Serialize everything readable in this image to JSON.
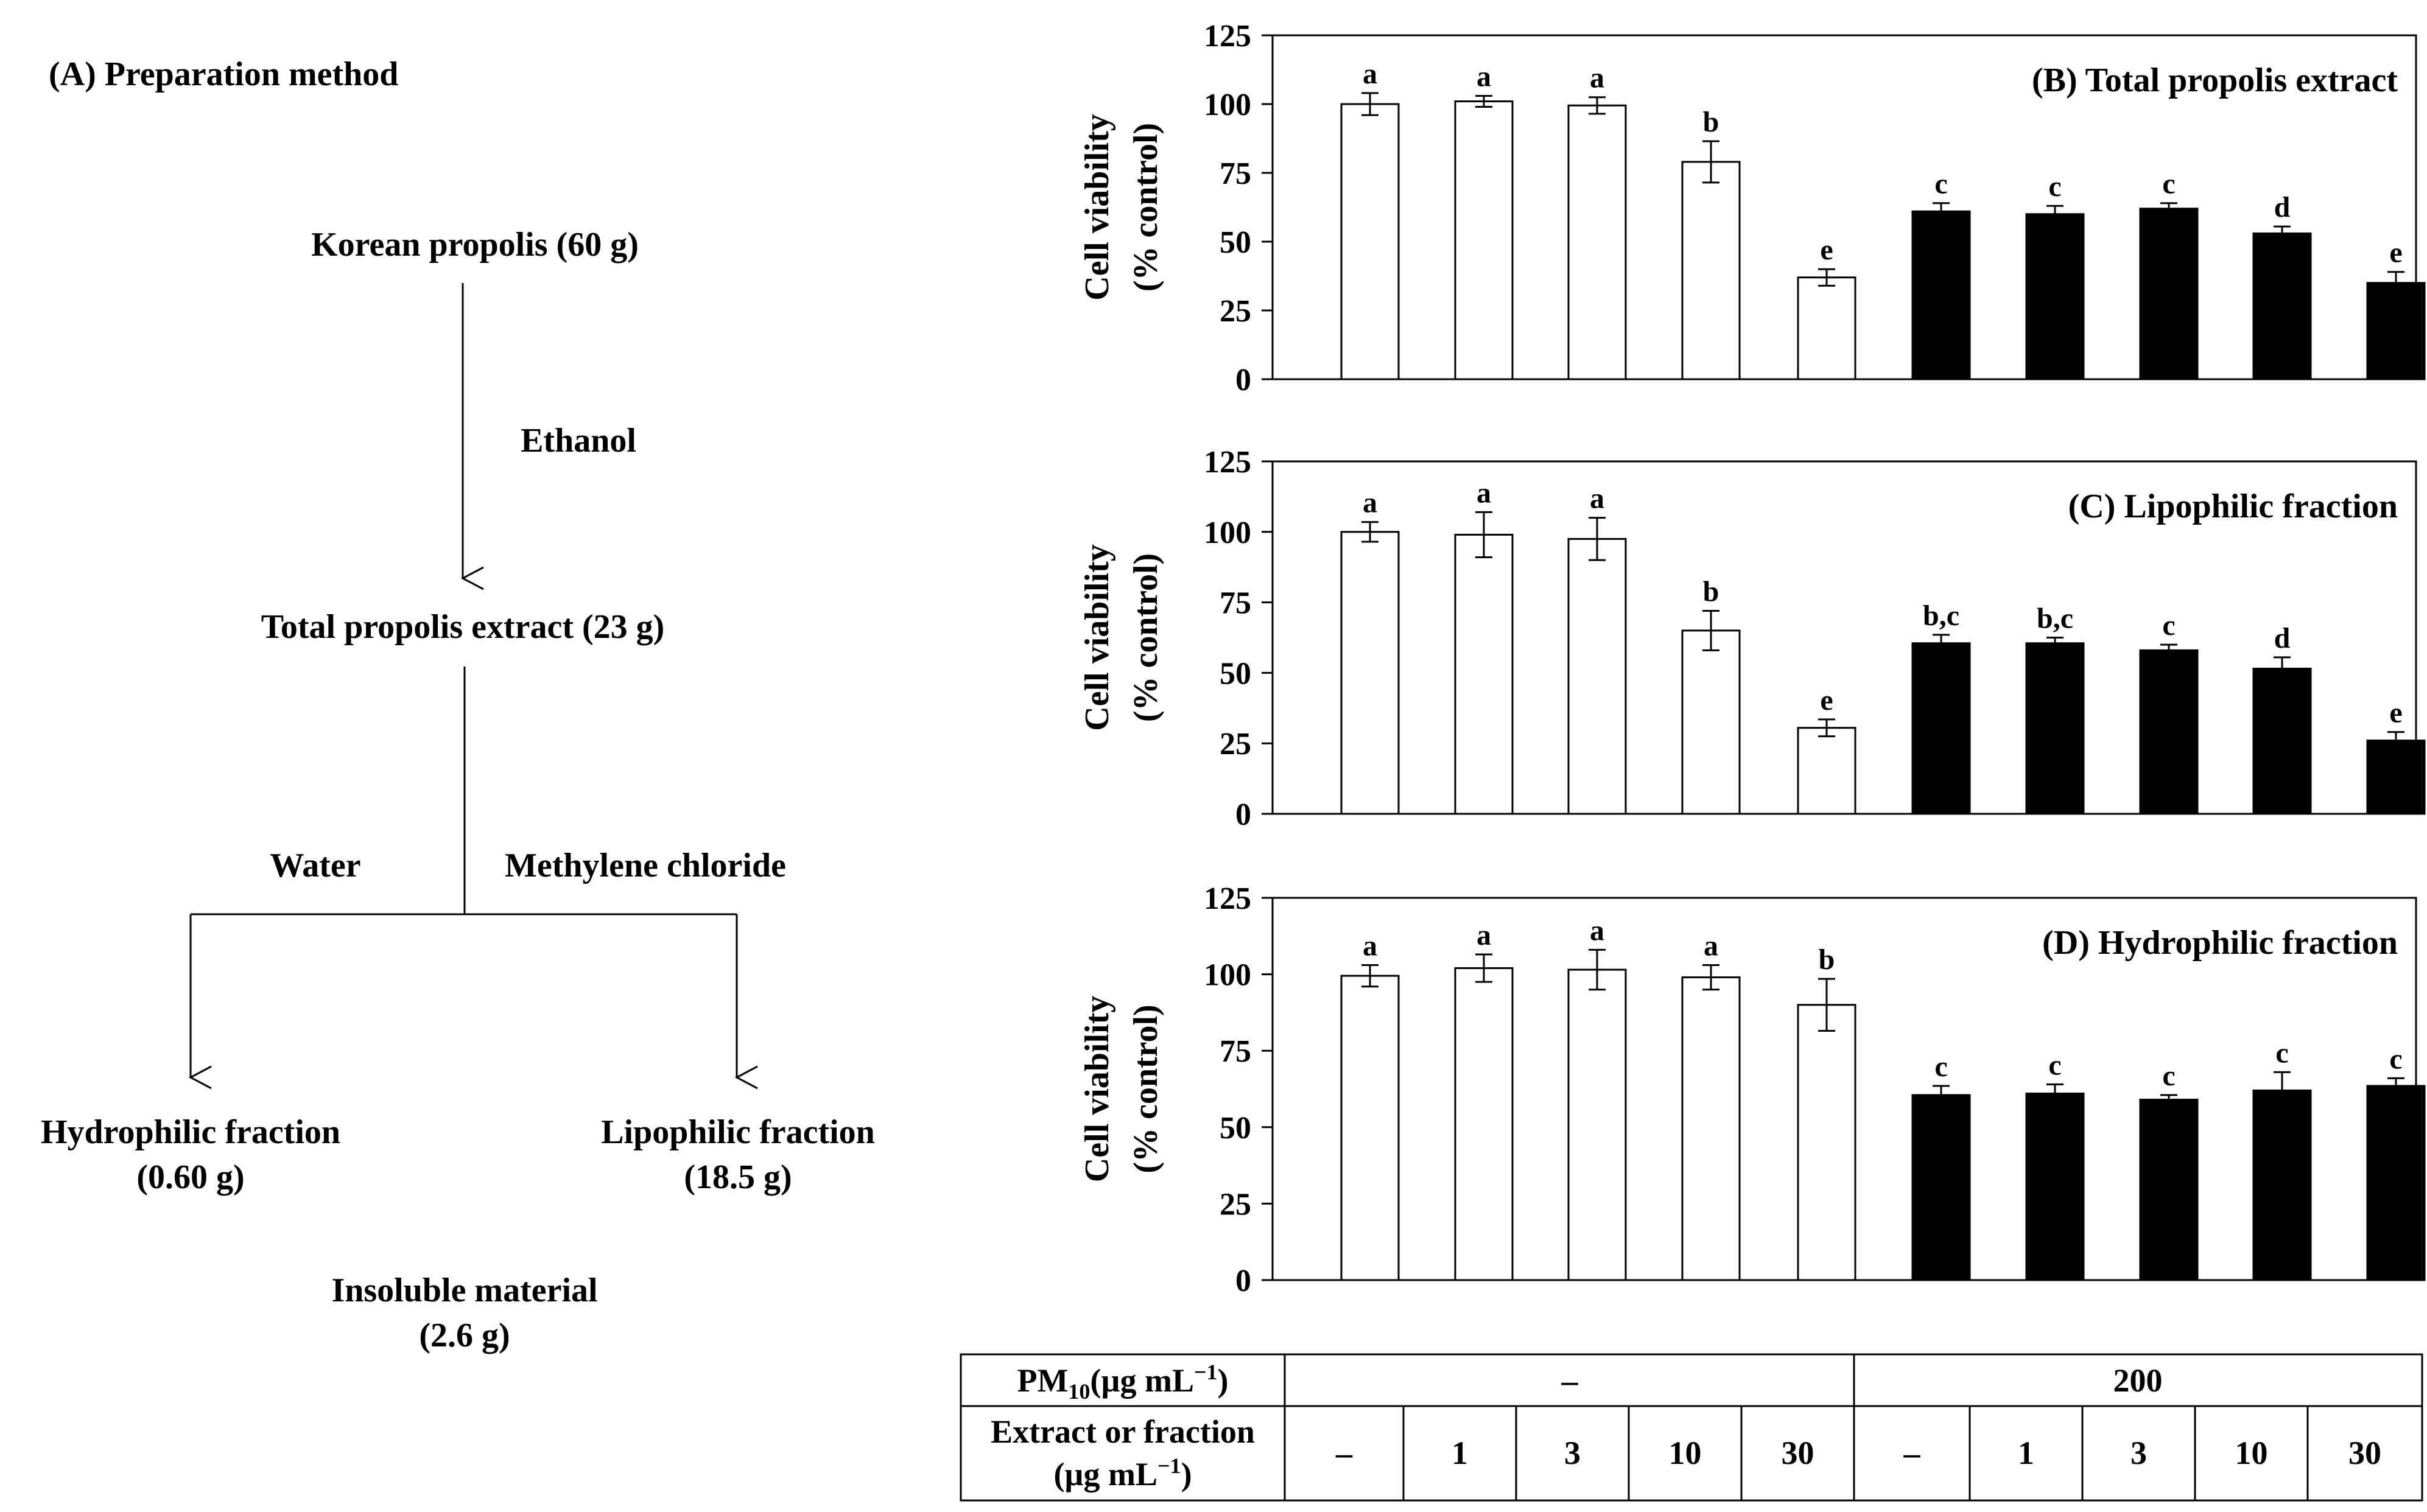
{
  "flowchart": {
    "title": "(A) Preparation method",
    "start": "Korean propolis (60 g)",
    "step1_solvent": "Ethanol",
    "total_extract": "Total propolis extract (23 g)",
    "solvent_left": "Water",
    "solvent_right": "Methylene chloride",
    "hydrophilic_name": "Hydrophilic fraction",
    "hydrophilic_mass": "(0.60 g)",
    "lipophilic_name": "Lipophilic fraction",
    "lipophilic_mass": "(18.5 g)",
    "insoluble_name": "Insoluble material",
    "insoluble_mass": "(2.6 g)"
  },
  "colors": {
    "control_fill": "#ffffff",
    "pm_fill": "#000000",
    "axis": "#000000"
  },
  "chart_data": [
    {
      "type": "bar",
      "title": "(B) Total propolis extract",
      "ylabel_line1": "Cell viability",
      "ylabel_line2": "(% control)",
      "ylim": [
        0,
        125
      ],
      "yticks": [
        "0",
        "25",
        "50",
        "75",
        "100",
        "125"
      ],
      "values": [
        100,
        101,
        99.5,
        79,
        37,
        61,
        60,
        62,
        53,
        35
      ],
      "errors": [
        4,
        2,
        3,
        7.5,
        3,
        3,
        3,
        2,
        2.5,
        4
      ],
      "letters": [
        "a",
        "a",
        "a",
        "b",
        "e",
        "c",
        "c",
        "c",
        "d",
        "e"
      ]
    },
    {
      "type": "bar",
      "title": "(C) Lipophilic fraction",
      "ylabel_line1": "Cell viability",
      "ylabel_line2": "(% control)",
      "ylim": [
        0,
        125
      ],
      "yticks": [
        "0",
        "25",
        "50",
        "75",
        "100",
        "125"
      ],
      "values": [
        100,
        99,
        97.5,
        65,
        30.5,
        60.5,
        60.5,
        58,
        51.5,
        26
      ],
      "errors": [
        3.5,
        8,
        7.5,
        7,
        3,
        3,
        2,
        2,
        4,
        3
      ],
      "letters": [
        "a",
        "a",
        "a",
        "b",
        "e",
        "b,c",
        "b,c",
        "c",
        "d",
        "e"
      ]
    },
    {
      "type": "bar",
      "title": "(D) Hydrophilic fraction",
      "ylabel_line1": "Cell viability",
      "ylabel_line2": "(% control)",
      "ylim": [
        0,
        125
      ],
      "yticks": [
        "0",
        "25",
        "50",
        "75",
        "100",
        "125"
      ],
      "values": [
        99.5,
        102,
        101.5,
        99,
        90,
        60.5,
        61,
        59,
        62,
        63.5
      ],
      "errors": [
        3.5,
        4.5,
        6.5,
        4,
        8.5,
        3,
        3,
        1.5,
        6,
        2.5
      ],
      "letters": [
        "a",
        "a",
        "a",
        "a",
        "b",
        "c",
        "c",
        "c",
        "c",
        "c"
      ]
    }
  ],
  "table": {
    "pm_label": "PM",
    "pm_sub": "10",
    "pm_unit": "(µg mL",
    "pm_exp": "−1",
    "pm_close": ")",
    "pm_control": "–",
    "pm_treated": "200",
    "ext_label_line1": "Extract or fraction",
    "ext_label_line2": "(µg mL",
    "ext_exp": "−1",
    "ext_close": ")",
    "concentrations": [
      "–",
      "1",
      "3",
      "10",
      "30",
      "–",
      "1",
      "3",
      "10",
      "30"
    ]
  }
}
